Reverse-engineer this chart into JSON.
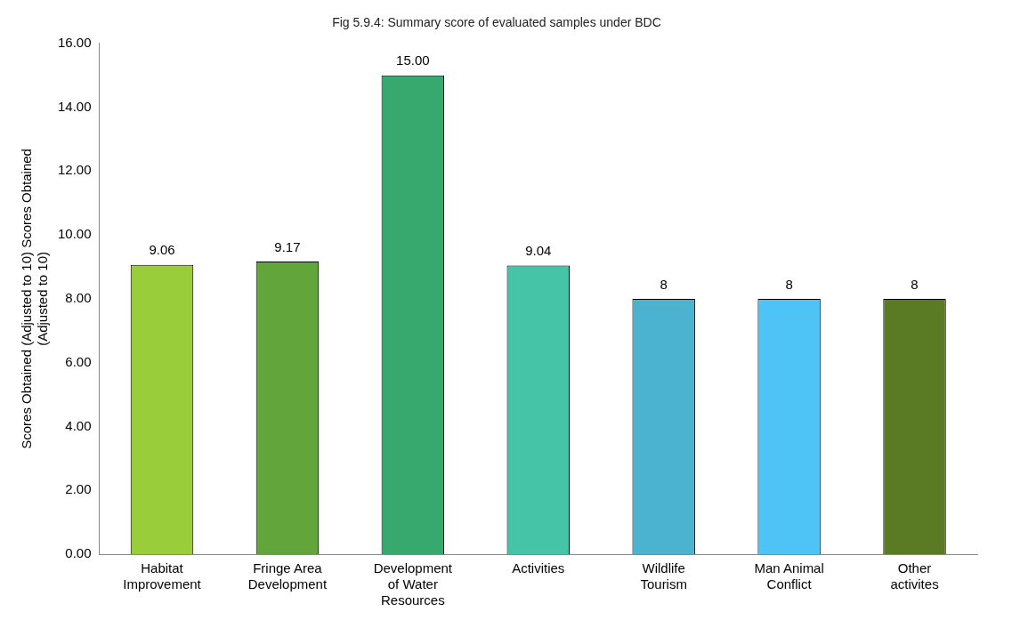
{
  "chart_data": {
    "type": "bar",
    "title": "Fig 5.9.4: Summary score of evaluated samples under BDC",
    "ylabel": "Scores Obtained (Adjusted to 10) Scores Obtained (Adjusted to 10)",
    "categories": [
      "Habitat Improvement",
      "Fringe Area Development",
      "Development of Water Resources",
      "Activities",
      "Wildlife Tourism",
      "Man Animal Conflict",
      "Other activites"
    ],
    "values": [
      9.06,
      9.17,
      15,
      9.04,
      8,
      8,
      8
    ],
    "value_labels": [
      "9.06",
      "9.17",
      "15.00",
      "9.04",
      "8",
      "8",
      "8"
    ],
    "colors": [
      "#9acd3a",
      "#62a53a",
      "#37a86e",
      "#45c4a8",
      "#4bb3cf",
      "#4ec3f5",
      "#5a7a24"
    ],
    "ylim": [
      0,
      16
    ],
    "yticks": [
      {
        "value": 0,
        "label": "0.00"
      },
      {
        "value": 2,
        "label": "2.00"
      },
      {
        "value": 4,
        "label": "4.00"
      },
      {
        "value": 6,
        "label": "6.00"
      },
      {
        "value": 8,
        "label": "8.00"
      },
      {
        "value": 10,
        "label": "10.00"
      },
      {
        "value": 12,
        "label": "12.00"
      },
      {
        "value": 14,
        "label": "14.00"
      },
      {
        "value": 16,
        "label": "16.00"
      }
    ],
    "grid": false,
    "legend": false
  }
}
